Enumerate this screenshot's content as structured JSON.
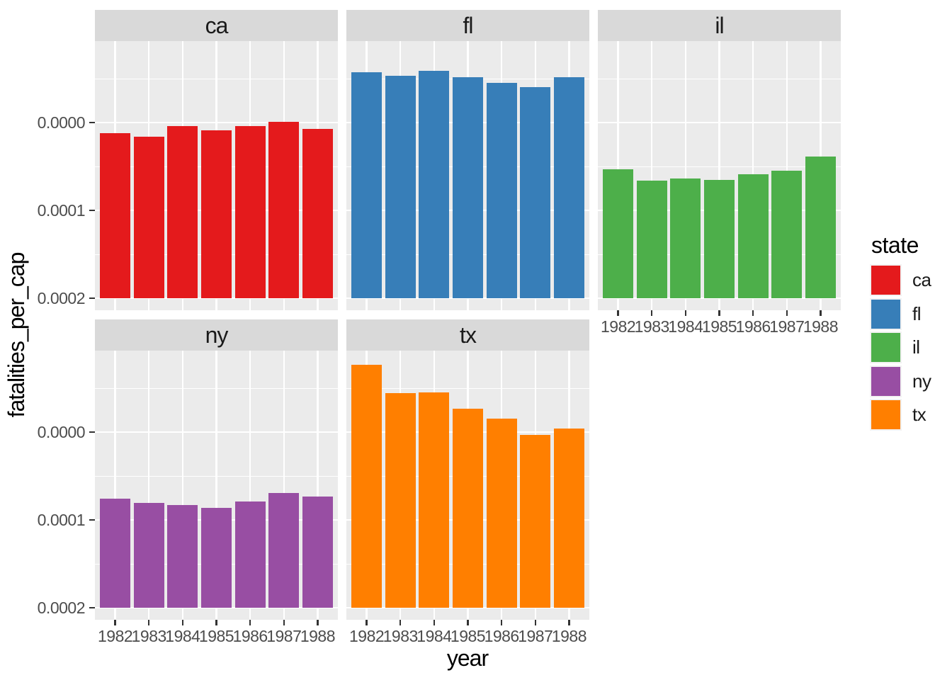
{
  "page": {
    "background": "#FFFFFF"
  },
  "chart_data": {
    "type": "bar",
    "title": "",
    "xlabel": "year",
    "ylabel": "fatalities_per_cap",
    "faceted_by": "state",
    "facet_labels": [
      "ca",
      "fl",
      "il",
      "ny",
      "tx"
    ],
    "x": [
      "1982",
      "1983",
      "1984",
      "1985",
      "1986",
      "1987",
      "1988"
    ],
    "ylim": [
      0,
      0.000293
    ],
    "yticks": [
      0.0,
      0.0001,
      0.0002
    ],
    "ytick_labels": [
      "0.0000",
      "0.0001",
      "0.0002"
    ],
    "minor_yticks": [
      5e-05,
      0.00015,
      0.00025
    ],
    "grid": "white major/minor horizontal lines and white vertical lines at each year, on gray panel",
    "legend_position": "right",
    "series": [
      {
        "name": "ca",
        "color": "#E41A1C",
        "values": [
          0.000188,
          0.000184,
          0.000196,
          0.000191,
          0.000196,
          0.000201,
          0.000193
        ]
      },
      {
        "name": "fl",
        "color": "#377EB8",
        "values": [
          0.000257,
          0.000253,
          0.000259,
          0.000252,
          0.000245,
          0.00024,
          0.000252
        ]
      },
      {
        "name": "il",
        "color": "#4DAF4A",
        "values": [
          0.000147,
          0.000134,
          0.000136,
          0.000135,
          0.000141,
          0.000145,
          0.000161
        ]
      },
      {
        "name": "ny",
        "color": "#984EA3",
        "values": [
          0.000124,
          0.000119,
          0.000117,
          0.000114,
          0.000121,
          0.000131,
          0.000127
        ]
      },
      {
        "name": "tx",
        "color": "#FF7F00",
        "values": [
          0.000277,
          0.000244,
          0.000245,
          0.000227,
          0.000215,
          0.000197,
          0.000204
        ]
      }
    ]
  },
  "legend": {
    "title": "state"
  },
  "theme": {
    "panel_bg": "#EBEBEB",
    "strip_bg": "#D9D9D9",
    "grid_color": "#FFFFFF",
    "axis_text_color": "#4D4D4D",
    "tick_color": "#333333",
    "legend_key_bg": "#F2F2F2"
  }
}
